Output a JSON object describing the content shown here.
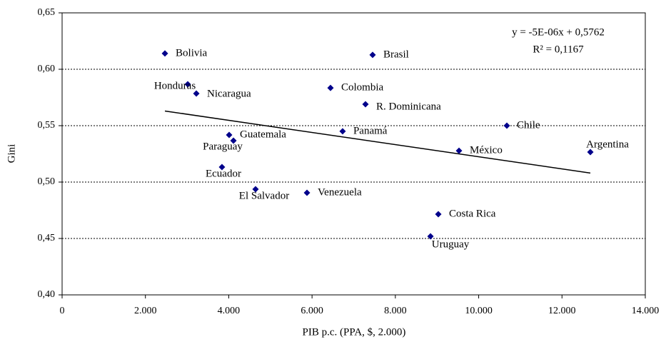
{
  "chart_data": {
    "type": "scatter",
    "x_label": "PIB p.c. (PPA, $, 2.000)",
    "y_label": "Gini",
    "labels": [
      "Bolivia",
      "Brasil",
      "Honduras",
      "Nicaragua",
      "Colombia",
      "R. Dominicana",
      "Chile",
      "Panamá",
      "Guatemala",
      "Paraguay",
      "México",
      "Argentina",
      "Ecuador",
      "El Salvador",
      "Venezuela",
      "Costa Rica",
      "Uruguay"
    ],
    "x": [
      2468,
      7454,
      3016,
      3222,
      6443,
      7283,
      10676,
      6734,
      4010,
      4113,
      9528,
      12681,
      3838,
      4644,
      5878,
      9031,
      8843
    ],
    "y": [
      0.614,
      0.6127,
      0.5867,
      0.5785,
      0.5835,
      0.569,
      0.55,
      0.545,
      0.5418,
      0.5367,
      0.5278,
      0.5266,
      0.5133,
      0.4937,
      0.4905,
      0.4715,
      0.4519
    ],
    "color": "#00008b",
    "trendline": {
      "x": [
        2468,
        12681
      ],
      "y": [
        0.563,
        0.508
      ]
    },
    "annotations": [
      "y = -5E-06x + 0,5762",
      "R² = 0,1167"
    ],
    "xlim": [
      0,
      14000
    ],
    "xticks": [
      0,
      {
        "value": 2000,
        "label": "2.000"
      },
      {
        "value": 4000,
        "label": "4.000"
      },
      {
        "value": 6000,
        "label": "6.000"
      },
      {
        "value": 8000,
        "label": "8.000"
      },
      {
        "value": 10000,
        "label": "10.000"
      },
      {
        "value": 12000,
        "label": "12.000"
      },
      {
        "value": 14000,
        "label": "14.000"
      }
    ],
    "ylim": [
      0.4,
      0.65
    ],
    "yticks": [
      {
        "value": 0.4,
        "label": "0,40"
      },
      {
        "value": 0.45,
        "label": "0,45"
      },
      {
        "value": 0.5,
        "label": "0,50"
      },
      {
        "value": 0.55,
        "label": "0,55"
      },
      {
        "value": 0.6,
        "label": "0,60"
      },
      {
        "value": 0.65,
        "label": "0,65"
      }
    ],
    "grid": true
  }
}
